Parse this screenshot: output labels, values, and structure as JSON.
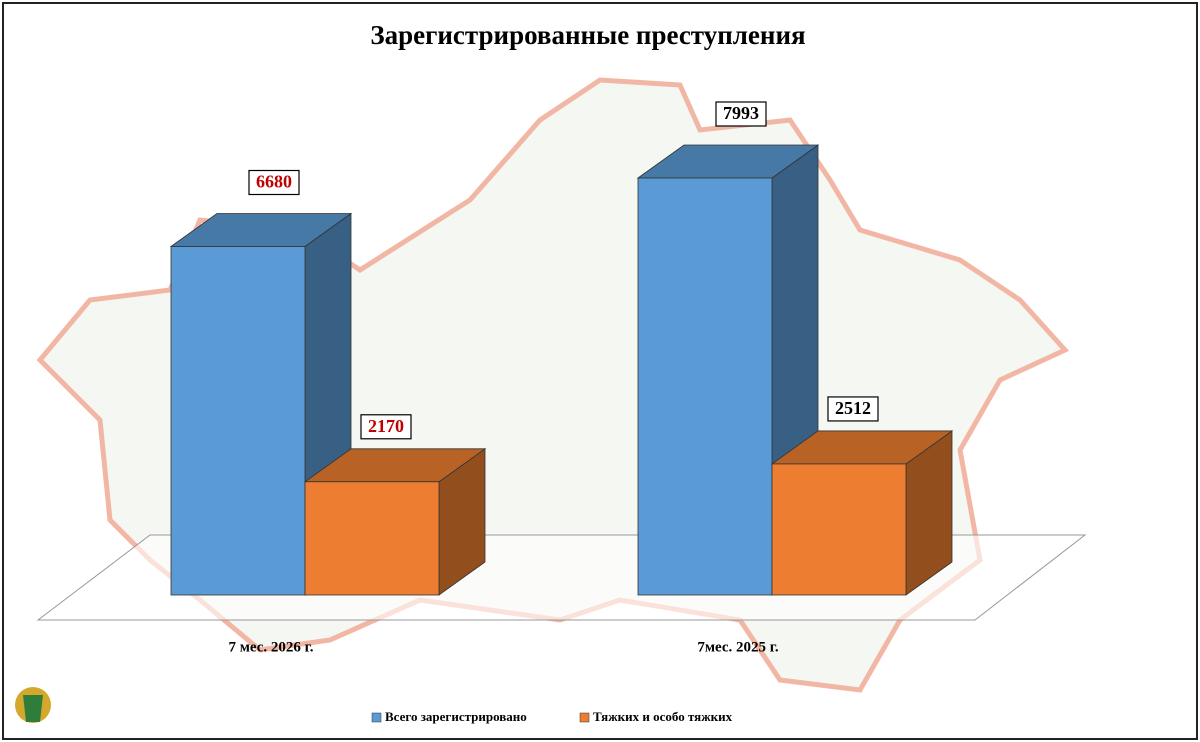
{
  "chart_data": {
    "type": "bar3d",
    "title": "Зарегистрированные преступления",
    "categories": [
      "7 мес. 2026 г.",
      "7мес. 2025 г."
    ],
    "series": [
      {
        "name": "Всего зарегистрировано",
        "color": "#5b9bd5",
        "values": [
          6680,
          7993
        ]
      },
      {
        "name": "Тяжких и особо тяжких",
        "color": "#ed7d31",
        "values": [
          2170,
          2512
        ]
      }
    ],
    "value_label_colors": [
      "#c00000",
      "#000000"
    ],
    "legend": "bottom"
  }
}
